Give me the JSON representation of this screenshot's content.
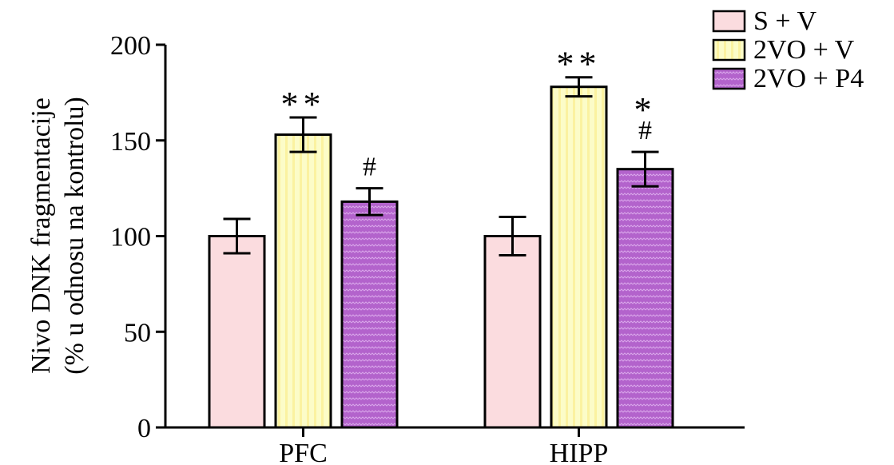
{
  "chart_data": {
    "type": "bar",
    "ylabel_line1": "Nivo DNK fragmentacije",
    "ylabel_line2": "(% u odnosu na kontrolu)",
    "ylim": [
      0,
      200
    ],
    "yticks": [
      "0",
      "50",
      "100",
      "150",
      "200"
    ],
    "categories": [
      "PFC",
      "HIPP"
    ],
    "series": [
      {
        "name": "S + V",
        "color": "#fbdcdf",
        "pattern": "solid",
        "values": [
          100,
          100
        ],
        "errors": [
          9,
          10
        ],
        "annotations": [
          "",
          ""
        ]
      },
      {
        "name": "2VO + V",
        "color": "#fcfcc8",
        "pattern": "vertical-stripes",
        "values": [
          153,
          178
        ],
        "errors": [
          9,
          5
        ],
        "annotations": [
          "**",
          "**"
        ]
      },
      {
        "name": "2VO + P4",
        "color": "#b767d0",
        "pattern": "dots",
        "values": [
          118,
          135
        ],
        "errors": [
          7,
          9
        ],
        "annotations": [
          "#",
          "*\n#"
        ]
      }
    ],
    "legend_position": "top-right"
  }
}
